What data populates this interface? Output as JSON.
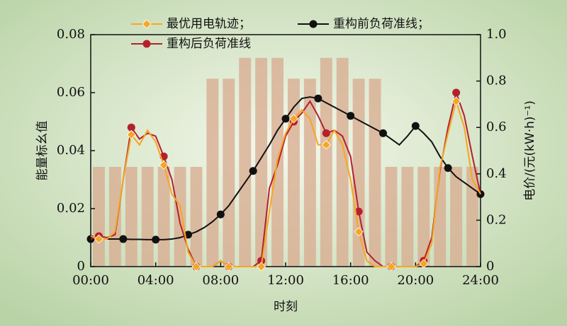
{
  "chart_data": {
    "type": "line",
    "ylabel": "能量标幺值",
    "y2label": "电价/(元(kW·h)⁻¹)",
    "xlabel": "时刻",
    "x": [
      0,
      0.5,
      1,
      1.5,
      2,
      2.5,
      3,
      3.5,
      4,
      4.5,
      5,
      5.5,
      6,
      6.5,
      7,
      7.5,
      8,
      8.5,
      9,
      9.5,
      10,
      10.5,
      11,
      11.5,
      12,
      12.5,
      13,
      13.5,
      14,
      14.5,
      15,
      15.5,
      16,
      16.5,
      17,
      17.5,
      18,
      18.5,
      19,
      19.5,
      20,
      20.5,
      21,
      21.5,
      22,
      22.5,
      23,
      23.5,
      24
    ],
    "xlim": [
      0,
      24
    ],
    "xticks": [
      {
        "value": 0,
        "label": "00:00"
      },
      {
        "value": 4,
        "label": "04:00"
      },
      {
        "value": 8,
        "label": "08:00"
      },
      {
        "value": 12,
        "label": "12:00"
      },
      {
        "value": 16,
        "label": "16:00"
      },
      {
        "value": 20,
        "label": "20:00"
      },
      {
        "value": 24,
        "label": "24:00"
      }
    ],
    "ylim": [
      0,
      0.08
    ],
    "yticks": [
      0,
      0.02,
      0.04,
      0.06,
      0.08
    ],
    "y2lim": [
      0,
      1
    ],
    "y2ticks": [
      0,
      0.2,
      0.4,
      0.6,
      0.8,
      {
        "value": 1,
        "label": "1.0"
      }
    ],
    "price": {
      "color": "#d8ae92",
      "values": [
        0.43,
        0.43,
        0.43,
        0.43,
        0.43,
        0.43,
        0.43,
        0.81,
        0.81,
        0.9,
        0.9,
        0.9,
        0.81,
        0.81,
        0.9,
        0.9,
        0.81,
        0.81,
        0.43,
        0.43,
        0.43,
        0.43,
        0.43,
        0.43
      ]
    },
    "series": [
      {
        "name": "最优用电轨迹；",
        "color": "#f5a623",
        "marker": "diamond",
        "values": [
          0.0105,
          0.0095,
          0.0095,
          0.012,
          0.03,
          0.0455,
          0.042,
          0.047,
          0.043,
          0.035,
          0.025,
          0.021,
          0.005,
          0,
          0,
          0,
          0.002,
          0,
          0,
          0,
          0,
          0,
          0.019,
          0.037,
          0.046,
          0.051,
          0.054,
          0.051,
          0.042,
          0.042,
          0.047,
          0.042,
          0.03,
          0.012,
          0.002,
          0,
          0,
          0,
          0,
          0,
          0,
          0.001,
          0.008,
          0.034,
          0.046,
          0.057,
          0.048,
          0.03,
          0.025
        ]
      },
      {
        "name": "重构前负荷准线；",
        "color": "#111111",
        "marker": "circle",
        "values": [
          0.0095,
          0.0095,
          0.0095,
          0.0095,
          0.0095,
          0.0094,
          0.0094,
          0.0093,
          0.0093,
          0.0093,
          0.0095,
          0.01,
          0.011,
          0.012,
          0.0135,
          0.0155,
          0.018,
          0.021,
          0.025,
          0.029,
          0.033,
          0.0375,
          0.042,
          0.047,
          0.051,
          0.055,
          0.058,
          0.0585,
          0.058,
          0.0565,
          0.055,
          0.0535,
          0.052,
          0.0505,
          0.049,
          0.0475,
          0.046,
          0.044,
          0.042,
          0.045,
          0.0485,
          0.046,
          0.043,
          0.038,
          0.034,
          0.031,
          0.029,
          0.027,
          0.025
        ]
      },
      {
        "name": "重构后负荷准线",
        "color": "#b5202e",
        "marker": "circle",
        "values": [
          0.0095,
          0.0105,
          0.01,
          0.011,
          0.03,
          0.048,
          0.044,
          0.046,
          0.045,
          0.038,
          0.03,
          0.015,
          0.006,
          0,
          0,
          0,
          0.002,
          0,
          0,
          0,
          0,
          0.002,
          0.027,
          0.035,
          0.045,
          0.05,
          0.053,
          0.057,
          0.052,
          0.046,
          0.047,
          0.045,
          0.038,
          0.019,
          0.005,
          0.002,
          0,
          0,
          0,
          0,
          0,
          0.002,
          0.01,
          0.033,
          0.048,
          0.06,
          0.052,
          0.038,
          0.025
        ]
      }
    ]
  }
}
